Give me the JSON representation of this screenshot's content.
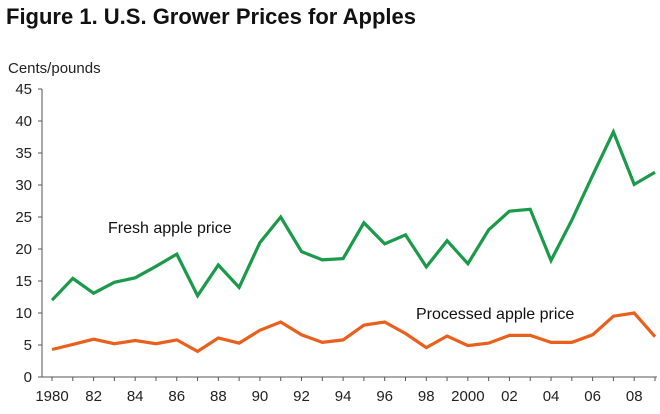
{
  "figure_title": "Figure 1.  U.S. Grower Prices for Apples",
  "chart_data": {
    "type": "line",
    "title": "Figure 1.  U.S. Grower Prices for Apples",
    "ylabel": "Cents/pounds",
    "xlabel": "",
    "ylim": [
      0,
      45
    ],
    "yticks": [
      0,
      5,
      10,
      15,
      20,
      25,
      30,
      35,
      40,
      45
    ],
    "xlim": [
      1980,
      2009
    ],
    "xticks": [
      {
        "value": 1980,
        "label": "1980"
      },
      {
        "value": 1982,
        "label": "82"
      },
      {
        "value": 1984,
        "label": "84"
      },
      {
        "value": 1986,
        "label": "86"
      },
      {
        "value": 1988,
        "label": "88"
      },
      {
        "value": 1990,
        "label": "90"
      },
      {
        "value": 1992,
        "label": "92"
      },
      {
        "value": 1994,
        "label": "94"
      },
      {
        "value": 1996,
        "label": "96"
      },
      {
        "value": 1998,
        "label": "98"
      },
      {
        "value": 2000,
        "label": "2000"
      },
      {
        "value": 2002,
        "label": "02"
      },
      {
        "value": 2004,
        "label": "04"
      },
      {
        "value": 2006,
        "label": "06"
      },
      {
        "value": 2008,
        "label": "08"
      }
    ],
    "grid": false,
    "x": [
      1980,
      1981,
      1982,
      1983,
      1984,
      1985,
      1986,
      1987,
      1988,
      1989,
      1990,
      1991,
      1992,
      1993,
      1994,
      1995,
      1996,
      1997,
      1998,
      1999,
      2000,
      2001,
      2002,
      2003,
      2004,
      2005,
      2006,
      2007,
      2008,
      2009
    ],
    "series": [
      {
        "name": "Fresh apple price",
        "color": "#1a9a4a",
        "values": [
          12.0,
          15.4,
          13.1,
          14.8,
          15.5,
          17.3,
          19.2,
          12.7,
          17.5,
          14.0,
          21.0,
          25.0,
          19.6,
          18.3,
          18.5,
          24.1,
          20.8,
          22.2,
          17.2,
          21.3,
          17.7,
          23.0,
          25.9,
          26.2,
          18.2,
          24.5,
          31.5,
          38.3,
          30.1,
          32.0
        ]
      },
      {
        "name": "Processed apple price",
        "color": "#e8601c",
        "values": [
          4.3,
          5.1,
          5.9,
          5.2,
          5.7,
          5.2,
          5.8,
          4.0,
          6.1,
          5.3,
          7.3,
          8.6,
          6.6,
          5.4,
          5.8,
          8.1,
          8.6,
          6.8,
          4.6,
          6.4,
          4.9,
          5.3,
          6.5,
          6.5,
          5.4,
          5.4,
          6.6,
          9.5,
          10.0,
          6.3
        ]
      }
    ]
  }
}
